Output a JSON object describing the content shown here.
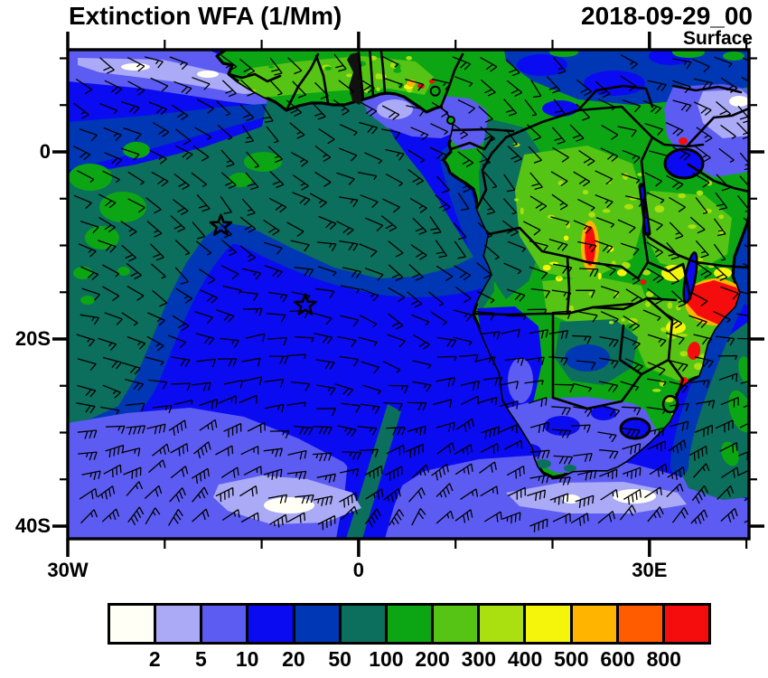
{
  "header": {
    "title": "Extinction WFA (1/Mm)",
    "date": "2018-09-29_00",
    "level": "Surface"
  },
  "axes": {
    "x_ticks": [
      {
        "lon": -30,
        "label": "30W",
        "major": true
      },
      {
        "lon": -20,
        "major": false
      },
      {
        "lon": -10,
        "major": false
      },
      {
        "lon": 0,
        "label": "0",
        "major": true
      },
      {
        "lon": 10,
        "major": false
      },
      {
        "lon": 20,
        "major": false
      },
      {
        "lon": 30,
        "label": "30E",
        "major": true
      },
      {
        "lon": 40,
        "major": false
      }
    ],
    "y_ticks": [
      {
        "lat": 10,
        "major": false
      },
      {
        "lat": 5,
        "major": false
      },
      {
        "lat": 0,
        "label": "0",
        "major": true
      },
      {
        "lat": -5,
        "major": false
      },
      {
        "lat": -10,
        "major": false
      },
      {
        "lat": -15,
        "major": false
      },
      {
        "lat": -20,
        "label": "20S",
        "major": true
      },
      {
        "lat": -25,
        "major": false
      },
      {
        "lat": -30,
        "major": false
      },
      {
        "lat": -35,
        "major": false
      },
      {
        "lat": -40,
        "label": "40S",
        "major": true
      }
    ]
  },
  "colorbar": {
    "levels": [
      "2",
      "5",
      "10",
      "20",
      "50",
      "100",
      "200",
      "300",
      "400",
      "500",
      "600",
      "800"
    ],
    "colors": [
      "#fffff6",
      "#aaaaf6",
      "#5c5cf2",
      "#0b0bf2",
      "#0037b5",
      "#0c6e5c",
      "#0ca614",
      "#55c414",
      "#aadf10",
      "#f5f50c",
      "#ffb400",
      "#ff5c00",
      "#f50c0c"
    ]
  },
  "chart_data": {
    "type": "heatmap",
    "title": "Extinction WFA (1/Mm)",
    "time": "2018-09-29_00",
    "vertical_level": "Surface",
    "units": "1/Mm",
    "extent": {
      "lon_min": -30,
      "lon_max": 40.3,
      "lat_min": -41.3,
      "lat_max": 10.9
    },
    "color_levels": [
      2,
      5,
      10,
      20,
      50,
      100,
      200,
      300,
      400,
      500,
      600,
      800
    ],
    "palette": [
      "#fffff6",
      "#aaaaf6",
      "#5c5cf2",
      "#0b0bf2",
      "#0037b5",
      "#0c6e5c",
      "#0ca614",
      "#55c414",
      "#aadf10",
      "#f5f50c",
      "#ffb400",
      "#ff5c00",
      "#f50c0c"
    ],
    "overlays": [
      "wind_barbs",
      "coastlines",
      "country_borders",
      "star_markers"
    ],
    "star_markers": [
      {
        "lon": -14.2,
        "lat": -7.9
      },
      {
        "lon": -5.5,
        "lat": -16.4
      }
    ],
    "circle_marker": {
      "lon": 7.9,
      "lat": 6.5
    },
    "features": [
      "Dark-teal smoke plume (50-100 1/Mm) spanning the tropical South Atlantic from the Gulf of Guinea coast toward 30W",
      "Green patches (100-200 1/Mm) embedded in the plume near 25W 0-8S and over the Congo basin",
      "Background ocean 10-20 1/Mm (blue), 5-10 1/Mm (periwinkle) south of ~28S with 2-5 patches",
      "High extinction (400-800+ 1/Mm, orange-red) hotspots over Mozambique/Malawi, Zambia-DRC and Nigerian coast",
      "Low values (2-10 1/Mm) over Kenya/Somalia region, Namibia-South Africa interior and Gulf of Guinea waters",
      "Wind barbs: southeasterly trades north of ~15S, westerlies south of ~30S"
    ]
  }
}
